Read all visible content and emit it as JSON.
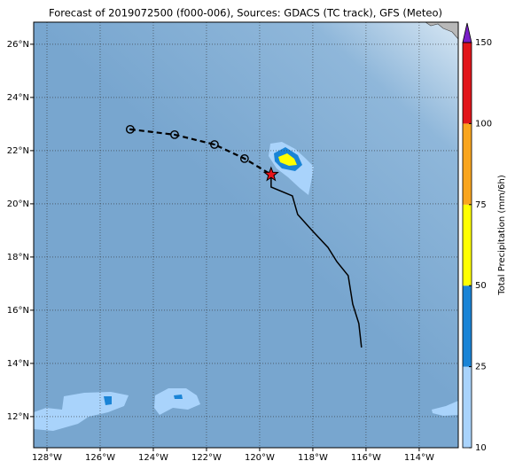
{
  "title": "Forecast of 2019072500 (f000-006), Sources: GDACS (TC track), GFS (Meteo)",
  "map": {
    "xlim": [
      -128.5,
      -112.53
    ],
    "ylim": [
      10.83,
      26.83
    ],
    "xticks": [
      {
        "value": -128,
        "label": "128°W"
      },
      {
        "value": -126,
        "label": "126°W"
      },
      {
        "value": -124,
        "label": "124°W"
      },
      {
        "value": -122,
        "label": "122°W"
      },
      {
        "value": -120,
        "label": "120°W"
      },
      {
        "value": -118,
        "label": "118°W"
      },
      {
        "value": -116,
        "label": "116°W"
      },
      {
        "value": -114,
        "label": "114°W"
      }
    ],
    "yticks": [
      {
        "value": 12,
        "label": "12°N"
      },
      {
        "value": 14,
        "label": "14°N"
      },
      {
        "value": 16,
        "label": "16°N"
      },
      {
        "value": 18,
        "label": "18°N"
      },
      {
        "value": 20,
        "label": "20°N"
      },
      {
        "value": 22,
        "label": "22°N"
      },
      {
        "value": 24,
        "label": "24°N"
      },
      {
        "value": 26,
        "label": "26°N"
      }
    ],
    "grid": true,
    "track": {
      "past": {
        "lon": [
          -124.87,
          -123.2,
          -121.7,
          -120.57,
          -119.57
        ],
        "lat": [
          22.8,
          22.6,
          22.23,
          21.7,
          21.1
        ]
      },
      "forecast": {
        "lon": [
          -119.57,
          -119.57,
          -118.77,
          -118.57,
          -118.03,
          -117.43,
          -117.1,
          -116.67,
          -116.5,
          -116.27,
          -116.17
        ],
        "lat": [
          21.1,
          20.63,
          20.3,
          19.6,
          19.0,
          18.36,
          17.83,
          17.3,
          16.23,
          15.5,
          14.6
        ]
      }
    }
  },
  "colorbar": {
    "label": "Total Precipitation (mm/6h)",
    "ticks": [
      10,
      25,
      50,
      75,
      100,
      150
    ],
    "colors": [
      "#a9d3fb",
      "#1a84d6",
      "#ffff00",
      "#f9a51e",
      "#e1151a"
    ],
    "extend_color": "#7a1fc8"
  }
}
